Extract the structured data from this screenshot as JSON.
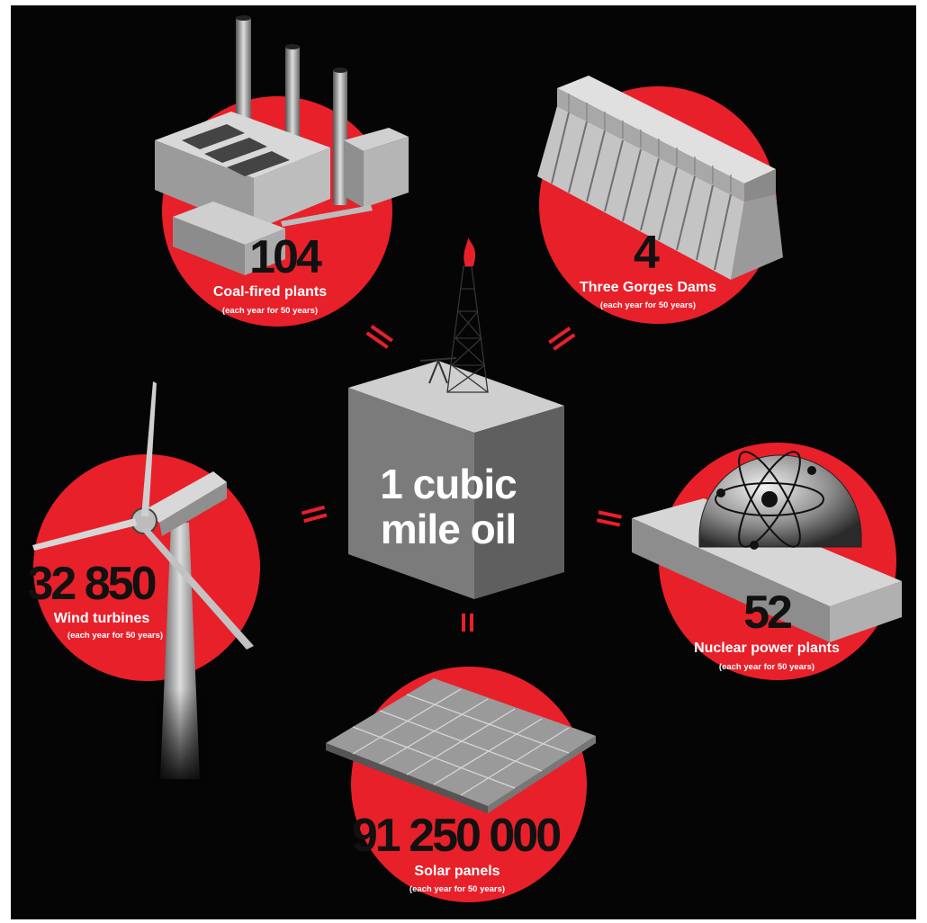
{
  "center": {
    "line1": "1 cubic",
    "line2": "mile oil",
    "equals": "="
  },
  "items": [
    {
      "id": "coal",
      "number": "104",
      "label": "Coal-fired plants",
      "note": "(each year for 50 years)"
    },
    {
      "id": "dams",
      "number": "4",
      "label": "Three Gorges Dams",
      "note": "(each year for 50 years)"
    },
    {
      "id": "wind",
      "number": "32 850",
      "label": "Wind turbines",
      "note": "(each year for 50 years)"
    },
    {
      "id": "nuclear",
      "number": "52",
      "label": "Nuclear power plants",
      "note": "(each year for 50 years)"
    },
    {
      "id": "solar",
      "number": "91 250 000",
      "label": "Solar panels",
      "note": "(each year for 50 years)"
    }
  ],
  "colors": {
    "background": "#050505",
    "circle": "#e8202a",
    "number": "#111111",
    "text": "#ffffff"
  }
}
